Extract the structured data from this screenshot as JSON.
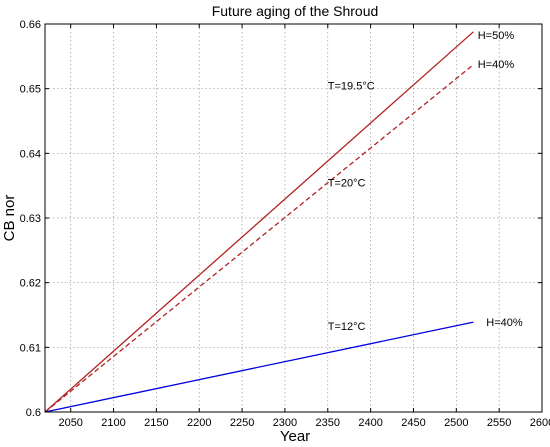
{
  "chart_data": {
    "type": "line",
    "title": "Future aging of the Shroud",
    "xlabel": "Year",
    "ylabel": "CB nor",
    "xlim": [
      2020,
      2600
    ],
    "ylim": [
      0.6,
      0.66
    ],
    "grid": true,
    "xticks": [
      "2050",
      "2100",
      "2150",
      "2200",
      "2250",
      "2300",
      "2350",
      "2400",
      "2450",
      "2500",
      "2550",
      "2600"
    ],
    "yticks": [
      "0.6",
      "0.61",
      "0.62",
      "0.63",
      "0.64",
      "0.65",
      "0.66"
    ],
    "series": [
      {
        "x": [
          2020,
          2520
        ],
        "y": [
          0.6,
          0.6588
        ],
        "color": "#b22222",
        "dash": "solid"
      },
      {
        "x": [
          2020,
          2520
        ],
        "y": [
          0.6,
          0.6537
        ],
        "color": "#b22222",
        "dash": "dashed"
      },
      {
        "x": [
          2020,
          2520
        ],
        "y": [
          0.6,
          0.6139
        ],
        "color": "#0000e0",
        "dash": "solid"
      }
    ],
    "annotations": [
      {
        "text": "T=19.5°C",
        "x": 2350,
        "y": 0.6505
      },
      {
        "text": "T=20°C",
        "x": 2350,
        "y": 0.6355
      },
      {
        "text": "T=12°C",
        "x": 2350,
        "y": 0.6133
      },
      {
        "text": "H=50%",
        "x": 2525,
        "y": 0.6583
      },
      {
        "text": "H=40%",
        "x": 2525,
        "y": 0.6538
      },
      {
        "text": "H=40%",
        "x": 2535,
        "y": 0.6139
      }
    ]
  }
}
